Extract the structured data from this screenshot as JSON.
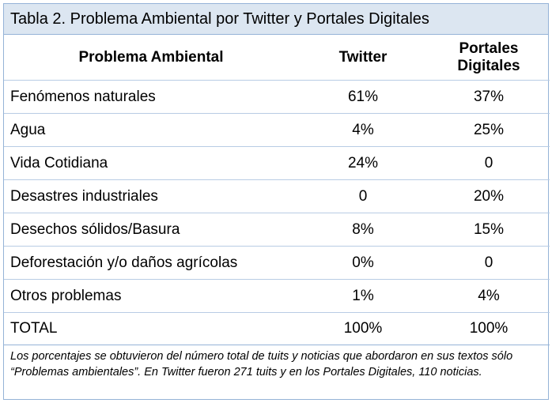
{
  "title": "Tabla 2. Problema Ambiental por Twitter y Portales Digitales",
  "table": {
    "header": [
      "Problema Ambiental",
      "Twitter",
      "Portales Digitales"
    ],
    "rows": [
      [
        "Fenómenos naturales",
        "61%",
        "37%"
      ],
      [
        "Agua",
        "4%",
        "25%"
      ],
      [
        "Vida Cotidiana",
        "24%",
        "0"
      ],
      [
        "Desastres industriales",
        "0",
        "20%"
      ],
      [
        "Desechos sólidos/Basura",
        "8%",
        "15%"
      ],
      [
        "Deforestación y/o daños agrícolas",
        "0%",
        "0"
      ],
      [
        "Otros problemas",
        "1%",
        "4%"
      ],
      [
        "TOTAL",
        "100%",
        "100%"
      ]
    ]
  },
  "note": "Los porcentajes se obtuvieron del número total de tuits y noticias que abordaron en sus textos sólo “Problemas ambientales”. En Twitter fueron 271 tuits y en los Portales Digitales, 110 noticias."
}
